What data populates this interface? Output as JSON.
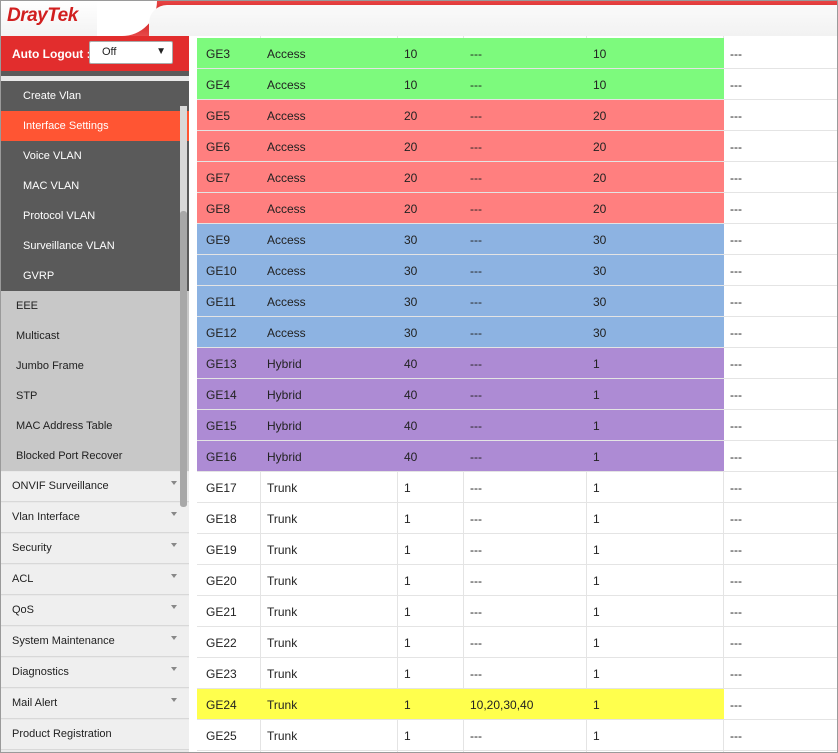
{
  "header": {
    "logo_dray": "Dray",
    "logo_tek": "Tek"
  },
  "auto_logout": {
    "label": "Auto Logout :",
    "value": "Off"
  },
  "sidebar": {
    "vlan_subitems": [
      {
        "label": "Create Vlan",
        "active": false
      },
      {
        "label": "Interface Settings",
        "active": true
      },
      {
        "label": "Voice VLAN",
        "active": false
      },
      {
        "label": "MAC VLAN",
        "active": false
      },
      {
        "label": "Protocol VLAN",
        "active": false
      },
      {
        "label": "Surveillance VLAN",
        "active": false
      },
      {
        "label": "GVRP",
        "active": false
      }
    ],
    "switch_subitems": [
      {
        "label": "EEE"
      },
      {
        "label": "Multicast"
      },
      {
        "label": "Jumbo Frame"
      },
      {
        "label": "STP"
      },
      {
        "label": "MAC Address Table"
      },
      {
        "label": "Blocked Port Recover"
      }
    ],
    "main_items": [
      {
        "label": "ONVIF Surveillance"
      },
      {
        "label": "Vlan Interface"
      },
      {
        "label": "Security"
      },
      {
        "label": "ACL"
      },
      {
        "label": "QoS"
      },
      {
        "label": "System Maintenance"
      },
      {
        "label": "Diagnostics"
      },
      {
        "label": "Mail Alert"
      },
      {
        "label": "Product Registration"
      }
    ]
  },
  "colors": {
    "access10": "#7dfa7d",
    "access20": "#ff7f7f",
    "access30": "#8db3e2",
    "hybrid40": "#ad8bd4",
    "trunk_all": "#ffff4d"
  },
  "table": {
    "rows": [
      {
        "port": "GE3",
        "mode": "Access",
        "pvid": "10",
        "tagged": "---",
        "untagged": "10",
        "forbidden": "---",
        "color": "access10"
      },
      {
        "port": "GE4",
        "mode": "Access",
        "pvid": "10",
        "tagged": "---",
        "untagged": "10",
        "forbidden": "---",
        "color": "access10"
      },
      {
        "port": "GE5",
        "mode": "Access",
        "pvid": "20",
        "tagged": "---",
        "untagged": "20",
        "forbidden": "---",
        "color": "access20"
      },
      {
        "port": "GE6",
        "mode": "Access",
        "pvid": "20",
        "tagged": "---",
        "untagged": "20",
        "forbidden": "---",
        "color": "access20"
      },
      {
        "port": "GE7",
        "mode": "Access",
        "pvid": "20",
        "tagged": "---",
        "untagged": "20",
        "forbidden": "---",
        "color": "access20"
      },
      {
        "port": "GE8",
        "mode": "Access",
        "pvid": "20",
        "tagged": "---",
        "untagged": "20",
        "forbidden": "---",
        "color": "access20"
      },
      {
        "port": "GE9",
        "mode": "Access",
        "pvid": "30",
        "tagged": "---",
        "untagged": "30",
        "forbidden": "---",
        "color": "access30"
      },
      {
        "port": "GE10",
        "mode": "Access",
        "pvid": "30",
        "tagged": "---",
        "untagged": "30",
        "forbidden": "---",
        "color": "access30"
      },
      {
        "port": "GE11",
        "mode": "Access",
        "pvid": "30",
        "tagged": "---",
        "untagged": "30",
        "forbidden": "---",
        "color": "access30"
      },
      {
        "port": "GE12",
        "mode": "Access",
        "pvid": "30",
        "tagged": "---",
        "untagged": "30",
        "forbidden": "---",
        "color": "access30"
      },
      {
        "port": "GE13",
        "mode": "Hybrid",
        "pvid": "40",
        "tagged": "---",
        "untagged": "1",
        "forbidden": "---",
        "color": "hybrid40"
      },
      {
        "port": "GE14",
        "mode": "Hybrid",
        "pvid": "40",
        "tagged": "---",
        "untagged": "1",
        "forbidden": "---",
        "color": "hybrid40"
      },
      {
        "port": "GE15",
        "mode": "Hybrid",
        "pvid": "40",
        "tagged": "---",
        "untagged": "1",
        "forbidden": "---",
        "color": "hybrid40"
      },
      {
        "port": "GE16",
        "mode": "Hybrid",
        "pvid": "40",
        "tagged": "---",
        "untagged": "1",
        "forbidden": "---",
        "color": "hybrid40"
      },
      {
        "port": "GE17",
        "mode": "Trunk",
        "pvid": "1",
        "tagged": "---",
        "untagged": "1",
        "forbidden": "---",
        "color": ""
      },
      {
        "port": "GE18",
        "mode": "Trunk",
        "pvid": "1",
        "tagged": "---",
        "untagged": "1",
        "forbidden": "---",
        "color": ""
      },
      {
        "port": "GE19",
        "mode": "Trunk",
        "pvid": "1",
        "tagged": "---",
        "untagged": "1",
        "forbidden": "---",
        "color": ""
      },
      {
        "port": "GE20",
        "mode": "Trunk",
        "pvid": "1",
        "tagged": "---",
        "untagged": "1",
        "forbidden": "---",
        "color": ""
      },
      {
        "port": "GE21",
        "mode": "Trunk",
        "pvid": "1",
        "tagged": "---",
        "untagged": "1",
        "forbidden": "---",
        "color": ""
      },
      {
        "port": "GE22",
        "mode": "Trunk",
        "pvid": "1",
        "tagged": "---",
        "untagged": "1",
        "forbidden": "---",
        "color": ""
      },
      {
        "port": "GE23",
        "mode": "Trunk",
        "pvid": "1",
        "tagged": "---",
        "untagged": "1",
        "forbidden": "---",
        "color": ""
      },
      {
        "port": "GE24",
        "mode": "Trunk",
        "pvid": "1",
        "tagged": "10,20,30,40",
        "untagged": "1",
        "forbidden": "---",
        "color": "trunk_all"
      },
      {
        "port": "GE25",
        "mode": "Trunk",
        "pvid": "1",
        "tagged": "---",
        "untagged": "1",
        "forbidden": "---",
        "color": ""
      }
    ]
  }
}
